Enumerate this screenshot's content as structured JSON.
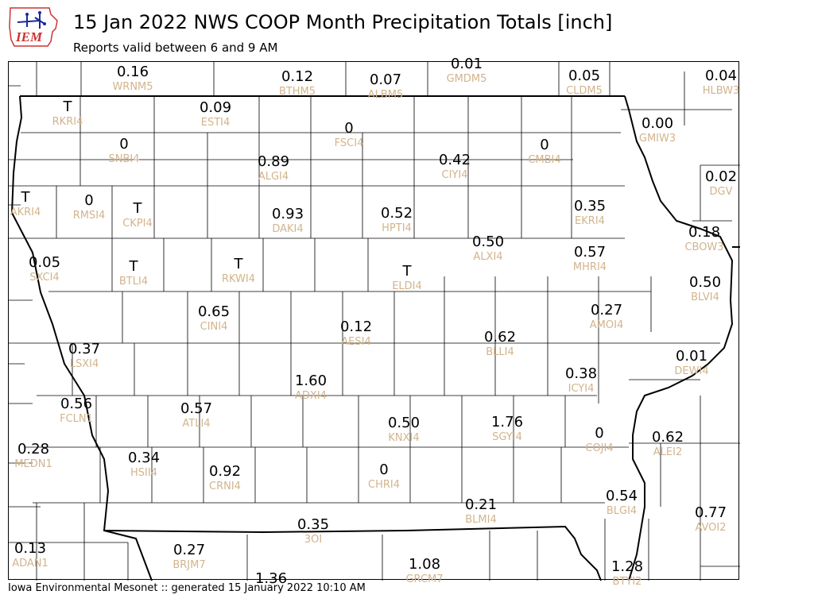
{
  "header": {
    "title": "15 Jan 2022 NWS COOP Month Precipitation Totals [inch]",
    "subtitle": "Reports valid between 6 and 9 AM",
    "logo_text": "IEM"
  },
  "footer": {
    "text": "Iowa Environmental Mesonet :: generated 15 January 2022 10:10 AM"
  },
  "colors": {
    "value": "#000000",
    "station_id": "#d2b48c",
    "county_line": "#000000",
    "logo_red": "#cc3333",
    "logo_blue": "#1a2a9a"
  },
  "stations": [
    {
      "value": "0.16",
      "id": "WRNM5"
    },
    {
      "value": "0.12",
      "id": "BTHM5"
    },
    {
      "value": "0.07",
      "id": "ALBM5"
    },
    {
      "value": "0.01",
      "id": "GMDM5"
    },
    {
      "value": "0.05",
      "id": "CLDM5"
    },
    {
      "value": "0.04",
      "id": "HLBW3"
    },
    {
      "value": "T",
      "id": "RKRI4"
    },
    {
      "value": "0.09",
      "id": "ESTI4"
    },
    {
      "value": "0",
      "id": "FSCI4"
    },
    {
      "value": "0.00",
      "id": "GMIW3"
    },
    {
      "value": "0",
      "id": "SNBI4"
    },
    {
      "value": "0.89",
      "id": "ALGI4"
    },
    {
      "value": "0.42",
      "id": "CIYI4"
    },
    {
      "value": "0",
      "id": "CMBI4"
    },
    {
      "value": "0.02",
      "id": "DGV"
    },
    {
      "value": "T",
      "id": "AKRI4"
    },
    {
      "value": "0",
      "id": "RMSI4"
    },
    {
      "value": "T",
      "id": "CKPI4"
    },
    {
      "value": "0.93",
      "id": "DAKI4"
    },
    {
      "value": "0.52",
      "id": "HPTI4"
    },
    {
      "value": "0.35",
      "id": "EKRI4"
    },
    {
      "value": "0.18",
      "id": "CBOW3"
    },
    {
      "value": "0.05",
      "id": "SXCI4"
    },
    {
      "value": "T",
      "id": "BTLI4"
    },
    {
      "value": "T",
      "id": "RKWI4"
    },
    {
      "value": "0.50",
      "id": "ALXI4"
    },
    {
      "value": "T",
      "id": "ELDI4"
    },
    {
      "value": "0.57",
      "id": "MHRI4"
    },
    {
      "value": "0.50",
      "id": "BLVI4"
    },
    {
      "value": "0.65",
      "id": "CINI4"
    },
    {
      "value": "0.27",
      "id": "AMOI4"
    },
    {
      "value": "0.12",
      "id": "AESI4"
    },
    {
      "value": "0.62",
      "id": "BLLI4"
    },
    {
      "value": "0.37",
      "id": "LSXI4"
    },
    {
      "value": "0.01",
      "id": "DEWI4"
    },
    {
      "value": "1.60",
      "id": "ADXI4"
    },
    {
      "value": "0.38",
      "id": "ICYI4"
    },
    {
      "value": "0.56",
      "id": "FCLN1"
    },
    {
      "value": "0.57",
      "id": "ATLI4"
    },
    {
      "value": "0.50",
      "id": "KNXI4"
    },
    {
      "value": "1.76",
      "id": "SGYI4"
    },
    {
      "value": "0",
      "id": "COJI4"
    },
    {
      "value": "0.62",
      "id": "ALEI2"
    },
    {
      "value": "0.28",
      "id": "MEDN1"
    },
    {
      "value": "0.34",
      "id": "HSII4"
    },
    {
      "value": "0.92",
      "id": "CRNI4"
    },
    {
      "value": "0",
      "id": "CHRI4"
    },
    {
      "value": "0.21",
      "id": "BLMI4"
    },
    {
      "value": "0.54",
      "id": "BLGI4"
    },
    {
      "value": "0.77",
      "id": "AVOI2"
    },
    {
      "value": "0.35",
      "id": "3OI"
    },
    {
      "value": "0.13",
      "id": "ADAN1"
    },
    {
      "value": "0.27",
      "id": "BRJM7"
    },
    {
      "value": "1.08",
      "id": "GRCM7"
    },
    {
      "value": "1.28",
      "id": "BTYI2"
    },
    {
      "value": "1.36",
      "id": ""
    }
  ]
}
